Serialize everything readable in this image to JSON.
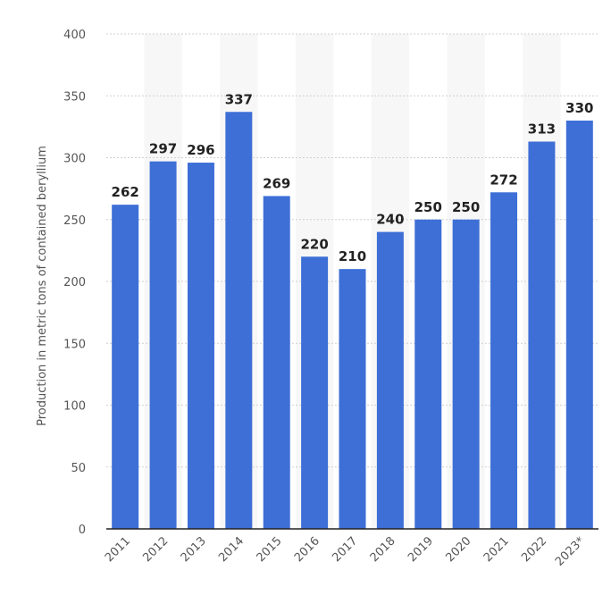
{
  "chart_data": {
    "type": "bar",
    "categories": [
      "2011",
      "2012",
      "2013",
      "2014",
      "2015",
      "2016",
      "2017",
      "2018",
      "2019",
      "2020",
      "2021",
      "2022",
      "2023*"
    ],
    "values": [
      262,
      297,
      296,
      337,
      269,
      220,
      210,
      240,
      250,
      250,
      272,
      313,
      330
    ],
    "title": "",
    "xlabel": "",
    "ylabel": "Production in metric tons of contained beryllium",
    "ylim": [
      0,
      400
    ],
    "yticks": [
      "0",
      "50",
      "100",
      "150",
      "200",
      "250",
      "300",
      "350",
      "400"
    ],
    "grid": true,
    "legend": "none",
    "colors": {
      "bar": "#3d6fd6",
      "band": "#f7f7f7",
      "grid": "#cfcfcf"
    }
  }
}
